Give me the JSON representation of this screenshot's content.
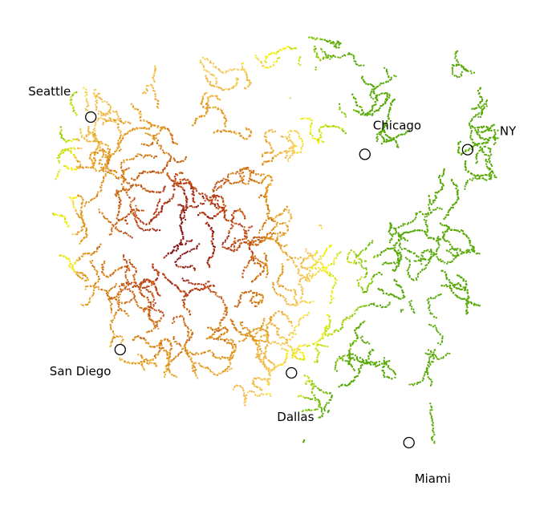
{
  "chart_data": {
    "type": "scatter",
    "title": "",
    "xlabel": "",
    "ylabel": "",
    "axes_visible": false,
    "grid": false,
    "description_points": "dense scatter of small colored dots arranged in the rough outline of the continental United States, colored by a temperature-like gradient from dark red (inland west) through orange to yellow and green (coasts)",
    "color_scale": [
      "#8b1a1a",
      "#b8401a",
      "#cc6a1a",
      "#e0961e",
      "#f0b84a",
      "#f5cf5a",
      "#f2f01a",
      "#c8e01a",
      "#8ccc14",
      "#5aaa0a"
    ],
    "landmarks": [
      {
        "name": "Seattle",
        "x": 0.12,
        "y": 0.8
      },
      {
        "name": "San Diego",
        "x": 0.18,
        "y": 0.3
      },
      {
        "name": "Chicago",
        "x": 0.68,
        "y": 0.72
      },
      {
        "name": "NY",
        "x": 0.89,
        "y": 0.73
      },
      {
        "name": "Dallas",
        "x": 0.53,
        "y": 0.25
      },
      {
        "name": "Miami",
        "x": 0.77,
        "y": 0.1
      }
    ]
  }
}
